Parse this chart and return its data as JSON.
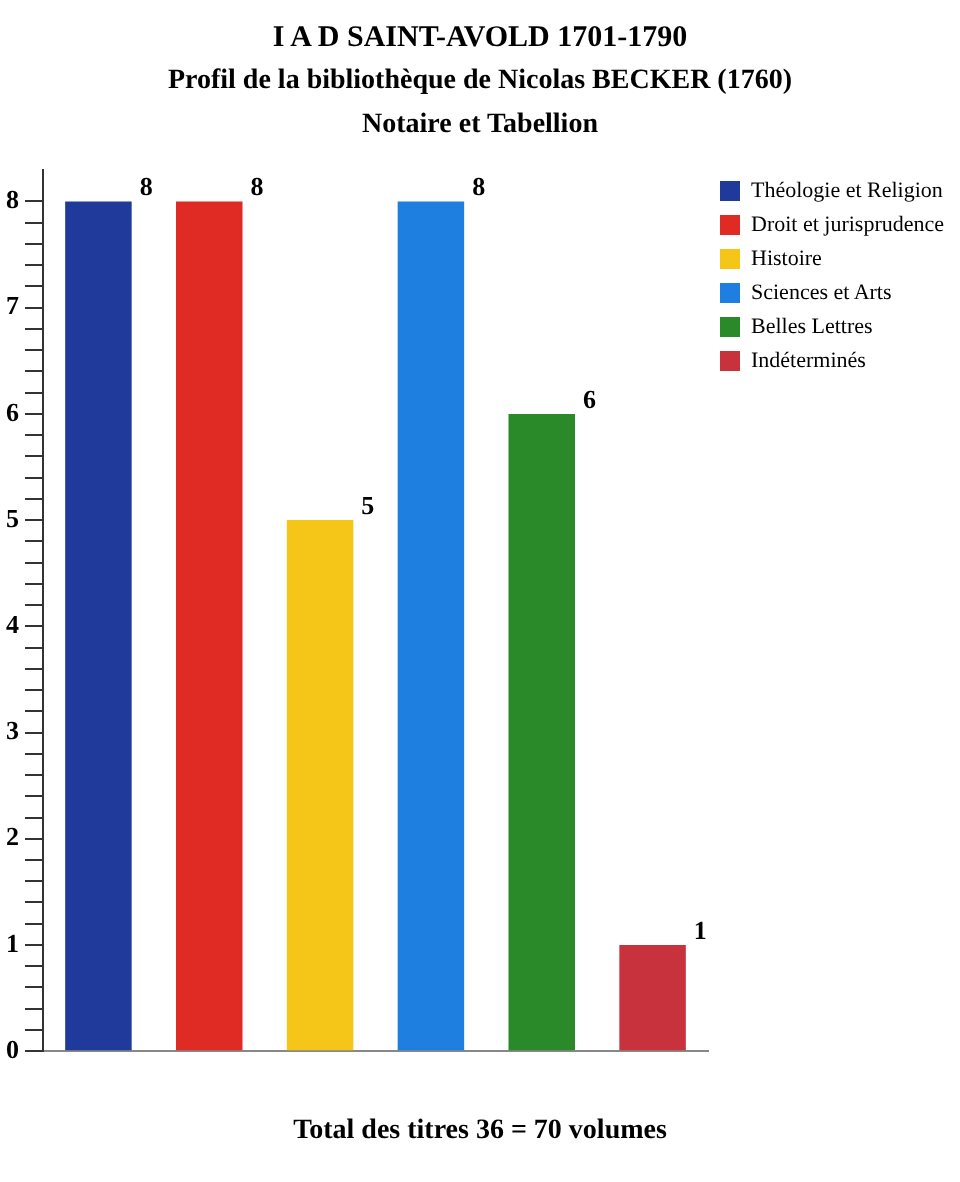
{
  "chart_data": {
    "type": "bar",
    "title": "I A D SAINT-AVOLD 1701-1790",
    "subtitle": "Profil de la bibliothèque de Nicolas BECKER (1760)\nNotaire et Tabellion",
    "categories": [
      null,
      null,
      null,
      null,
      null,
      null
    ],
    "series": [
      {
        "name": "Théologie et Religion",
        "color": "#1f3a9a",
        "values": [
          8,
          null,
          null,
          null,
          null,
          null
        ]
      },
      {
        "name": "Droit et jurisprudence",
        "color": "#e02b25",
        "values": [
          null,
          8,
          null,
          null,
          null,
          null
        ]
      },
      {
        "name": "Histoire",
        "color": "#f5c518",
        "values": [
          null,
          null,
          5,
          null,
          null,
          null
        ]
      },
      {
        "name": "Sciences et Arts",
        "color": "#1e7fe0",
        "values": [
          null,
          null,
          null,
          8,
          null,
          null
        ]
      },
      {
        "name": "Belles Lettres",
        "color": "#2a8a2a",
        "values": [
          null,
          null,
          null,
          null,
          6,
          null
        ]
      },
      {
        "name": "Indéterminés",
        "color": "#c8323c",
        "values": [
          null,
          null,
          null,
          null,
          null,
          1
        ]
      }
    ],
    "ylim": [
      0,
      8.3
    ],
    "yticks": [
      0,
      {
        "value": 0.2,
        "label": null
      },
      {
        "value": 0.4,
        "label": null
      },
      {
        "value": 0.6,
        "label": null
      },
      {
        "value": 0.8,
        "label": null
      },
      1,
      {
        "value": 1.2,
        "label": null
      },
      {
        "value": 1.4,
        "label": null
      },
      {
        "value": 1.6,
        "label": null
      },
      {
        "value": 1.8,
        "label": null
      },
      2,
      {
        "value": 2.2,
        "label": null
      },
      {
        "value": 2.4,
        "label": null
      },
      {
        "value": 2.6,
        "label": null
      },
      {
        "value": 2.8,
        "label": null
      },
      3,
      {
        "value": 3.2,
        "label": null
      },
      {
        "value": 3.4,
        "label": null
      },
      {
        "value": 3.6,
        "label": null
      },
      {
        "value": 3.8,
        "label": null
      },
      4,
      {
        "value": 4.2,
        "label": null
      },
      {
        "value": 4.4,
        "label": null
      },
      {
        "value": 4.6,
        "label": null
      },
      {
        "value": 4.8,
        "label": null
      },
      5,
      {
        "value": 5.2,
        "label": null
      },
      {
        "value": 5.4,
        "label": null
      },
      {
        "value": 5.6,
        "label": null
      },
      {
        "value": 5.8,
        "label": null
      },
      6,
      {
        "value": 6.2,
        "label": null
      },
      {
        "value": 6.4,
        "label": null
      },
      {
        "value": 6.6,
        "label": null
      },
      {
        "value": 6.8,
        "label": null
      },
      7,
      {
        "value": 7.2,
        "label": null
      },
      {
        "value": 7.4,
        "label": null
      },
      {
        "value": 7.6,
        "label": null
      },
      {
        "value": 7.8,
        "label": null
      },
      8
    ],
    "data_labels": true,
    "legend": "top right",
    "grid": false,
    "annotations": [
      "Total des titres 36 = 70 volumes"
    ]
  }
}
